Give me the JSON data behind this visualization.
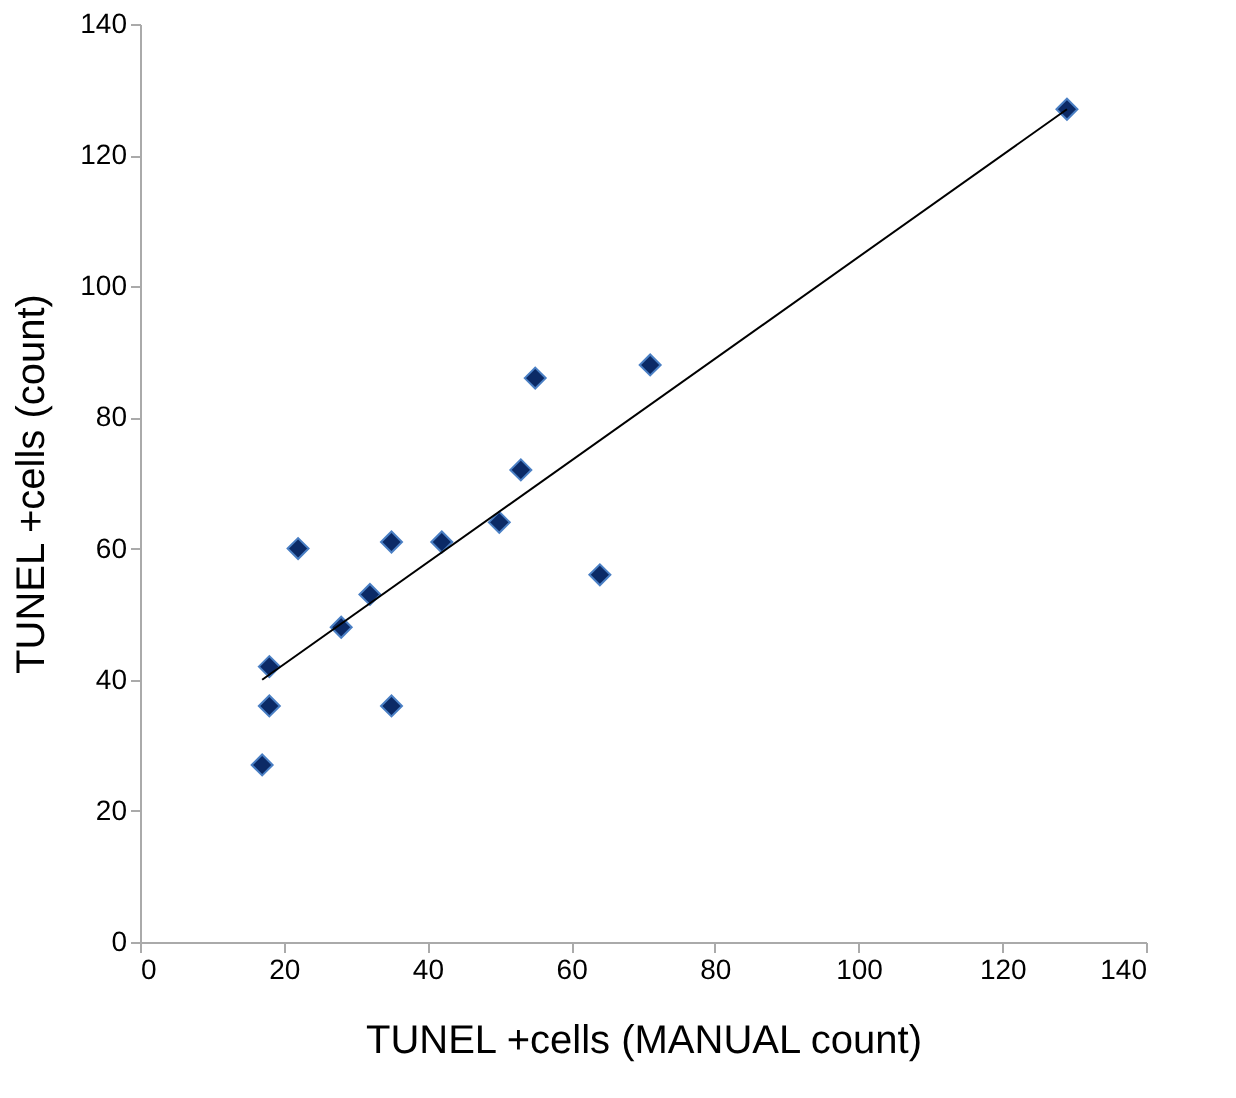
{
  "chart_data": {
    "type": "scatter",
    "xlabel": "TUNEL +cells (MANUAL count)",
    "ylabel": "TUNEL +cells (count)",
    "x": [
      17,
      18,
      18,
      22,
      28,
      32,
      35,
      35,
      42,
      50,
      53,
      55,
      64,
      71,
      129
    ],
    "series": [
      {
        "color": "#0b2a66",
        "marker": "diamond",
        "values": [
          27,
          42,
          36,
          60,
          48,
          53,
          61,
          36,
          61,
          64,
          72,
          86,
          56,
          88,
          127
        ]
      },
      {
        "type": "line",
        "color": "#000000",
        "marker": "none",
        "x": [
          17,
          129
        ],
        "values": [
          40,
          127
        ]
      }
    ],
    "xlim": [
      0,
      140
    ],
    "xticks": [
      0,
      20,
      40,
      60,
      80,
      100,
      120,
      140
    ],
    "ylim": [
      0,
      140
    ],
    "yticks": [
      0,
      20,
      40,
      60,
      80,
      100,
      120,
      140
    ],
    "grid": false
  }
}
